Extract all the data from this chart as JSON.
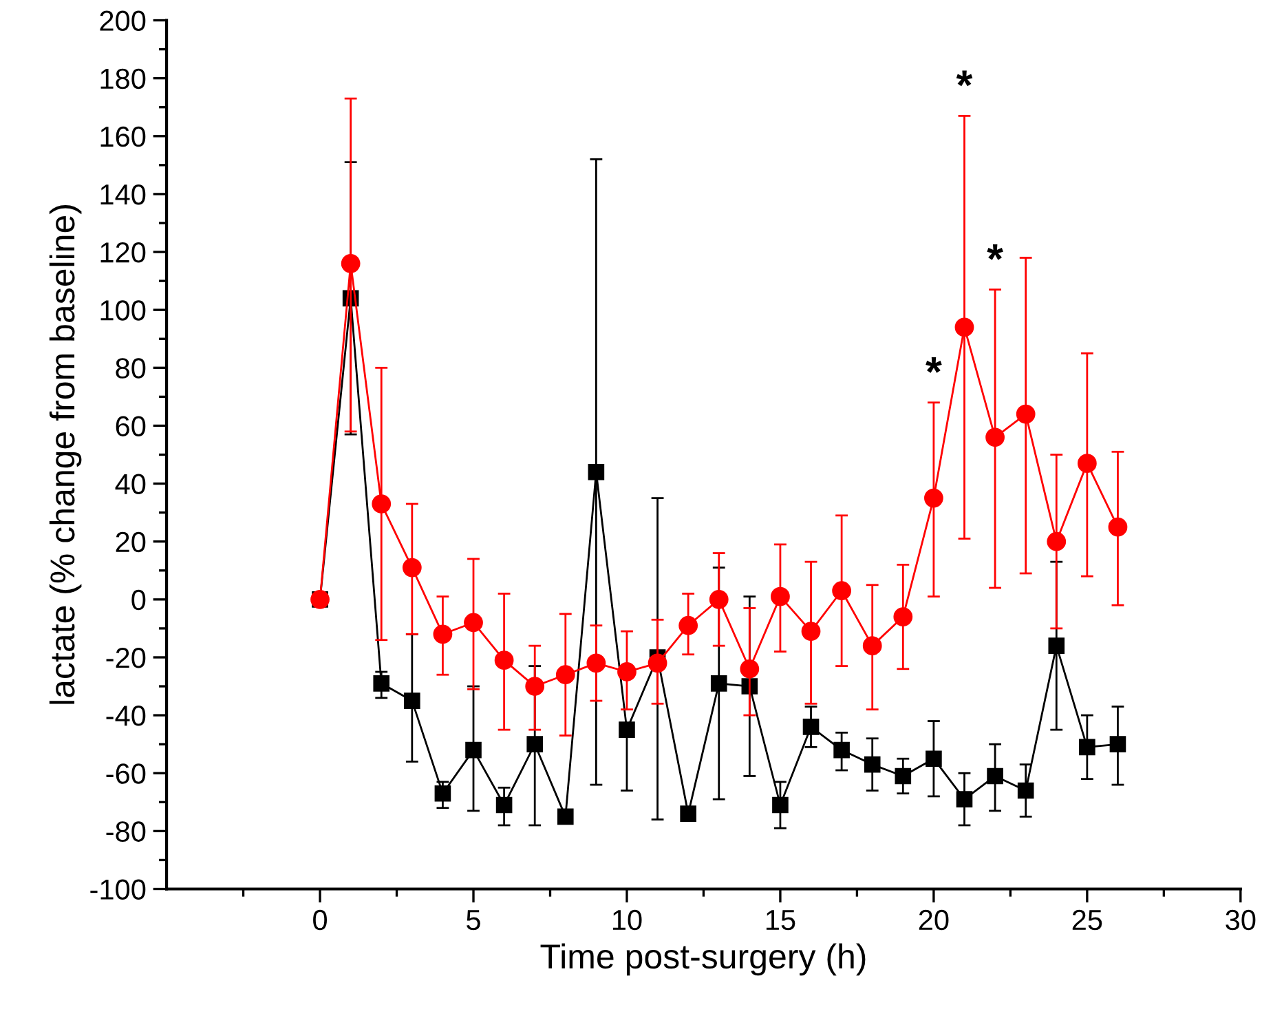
{
  "chart_data": {
    "type": "line",
    "xlabel": "Time post-surgery (h)",
    "ylabel": "lactate (% change from baseline)",
    "x": [
      0,
      1,
      2,
      3,
      4,
      5,
      6,
      7,
      8,
      9,
      10,
      11,
      12,
      13,
      14,
      15,
      16,
      17,
      18,
      19,
      20,
      21,
      22,
      23,
      24,
      25,
      26
    ],
    "series": [
      {
        "color": "#000000",
        "marker": "square",
        "values": [
          0,
          104,
          -29,
          -35,
          -67,
          -52,
          -71,
          -50,
          -75,
          44,
          -45,
          -20,
          -74,
          -29,
          -30,
          -71,
          -44,
          -52,
          -57,
          -61,
          -55,
          -69,
          -61,
          -66,
          -16,
          -51,
          -50
        ],
        "errors": [
          null,
          [
            57,
            151
          ],
          [
            -34,
            -25
          ],
          [
            -56,
            -12
          ],
          [
            -72,
            -63
          ],
          [
            -73,
            -30
          ],
          [
            -78,
            -65
          ],
          [
            -78,
            -23
          ],
          null,
          [
            -64,
            152
          ],
          [
            -66,
            -45
          ],
          [
            -76,
            35
          ],
          [
            -76,
            -72
          ],
          [
            -69,
            11
          ],
          [
            -61,
            1
          ],
          [
            -79,
            -63
          ],
          [
            -51,
            -37
          ],
          [
            -59,
            -46
          ],
          [
            -66,
            -48
          ],
          [
            -67,
            -55
          ],
          [
            -68,
            -42
          ],
          [
            -78,
            -60
          ],
          [
            -73,
            -50
          ],
          [
            -75,
            -57
          ],
          [
            -45,
            13
          ],
          [
            -62,
            -40
          ],
          [
            -64,
            -37
          ]
        ]
      },
      {
        "color": "#ff0000",
        "marker": "circle",
        "values": [
          0,
          116,
          33,
          11,
          -12,
          -8,
          -21,
          -30,
          -26,
          -22,
          -25,
          -22,
          -9,
          0,
          -24,
          1,
          -11,
          3,
          -16,
          -6,
          35,
          94,
          56,
          64,
          20,
          47,
          25
        ],
        "errors": [
          null,
          [
            58,
            173
          ],
          [
            -14,
            80
          ],
          [
            -12,
            33
          ],
          [
            -26,
            1
          ],
          [
            -31,
            14
          ],
          [
            -45,
            2
          ],
          [
            -45,
            -16
          ],
          [
            -47,
            -5
          ],
          [
            -35,
            -9
          ],
          [
            -38,
            -11
          ],
          [
            -36,
            -7
          ],
          [
            -19,
            2
          ],
          [
            -16,
            16
          ],
          [
            -40,
            -3
          ],
          [
            -18,
            19
          ],
          [
            -36,
            13
          ],
          [
            -23,
            29
          ],
          [
            -38,
            5
          ],
          [
            -24,
            12
          ],
          [
            1,
            68
          ],
          [
            21,
            167
          ],
          [
            4,
            107
          ],
          [
            9,
            118
          ],
          [
            -10,
            50
          ],
          [
            8,
            85
          ],
          [
            -2,
            51
          ]
        ]
      }
    ],
    "annotations": [
      {
        "text": "*",
        "x": 20,
        "y": 68
      },
      {
        "text": "*",
        "x": 21,
        "y": 167
      },
      {
        "text": "*",
        "x": 22,
        "y": 107
      }
    ],
    "xlim": [
      -5,
      30
    ],
    "xticks": [
      0,
      5,
      10,
      15,
      20,
      25,
      30,
      {
        "value": -2.5,
        "label": null
      },
      {
        "value": 2.5,
        "label": null
      },
      {
        "value": 7.5,
        "label": null
      },
      {
        "value": 12.5,
        "label": null
      },
      {
        "value": 17.5,
        "label": null
      },
      {
        "value": 22.5,
        "label": null
      },
      {
        "value": 27.5,
        "label": null
      }
    ],
    "ylim": [
      -100,
      200
    ],
    "yticks": [
      -100,
      -80,
      -60,
      -40,
      -20,
      0,
      20,
      40,
      60,
      80,
      100,
      120,
      140,
      160,
      180,
      200,
      {
        "value": -90,
        "label": null
      },
      {
        "value": -70,
        "label": null
      },
      {
        "value": -50,
        "label": null
      },
      {
        "value": -30,
        "label": null
      },
      {
        "value": -10,
        "label": null
      },
      {
        "value": 10,
        "label": null
      },
      {
        "value": 30,
        "label": null
      },
      {
        "value": 50,
        "label": null
      },
      {
        "value": 70,
        "label": null
      },
      {
        "value": 90,
        "label": null
      },
      {
        "value": 110,
        "label": null
      },
      {
        "value": 130,
        "label": null
      },
      {
        "value": 150,
        "label": null
      },
      {
        "value": 170,
        "label": null
      },
      {
        "value": 190,
        "label": null
      }
    ],
    "grid": false,
    "legend": false
  }
}
